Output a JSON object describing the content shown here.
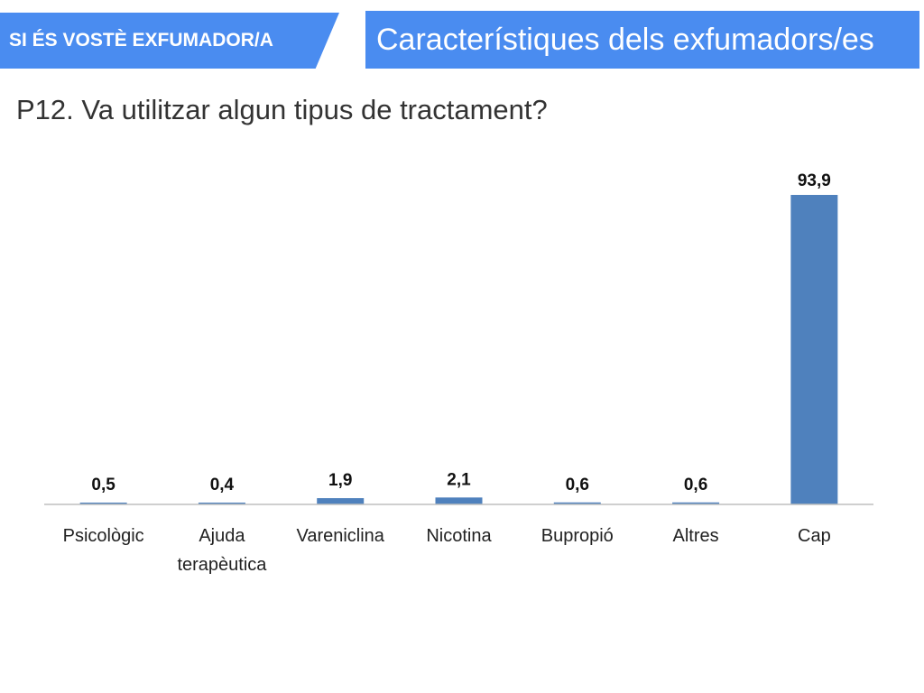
{
  "header": {
    "left_title": "SI ÉS VOSTÈ EXFUMADOR/A",
    "right_title": "Característiques dels exfumadors/es"
  },
  "question": "P12. Va utilitzar algun tipus de tractament?",
  "colors": {
    "banner": "#4a8cf0",
    "bar": "#4f81bd"
  },
  "chart_data": {
    "type": "bar",
    "categories": [
      [
        "Psicològic"
      ],
      [
        "Ajuda",
        "terapèutica"
      ],
      [
        "Vareniclina"
      ],
      [
        "Nicotina"
      ],
      [
        "Bupropió"
      ],
      [
        "Altres"
      ],
      [
        "Cap"
      ]
    ],
    "values": [
      0.5,
      0.4,
      1.9,
      2.1,
      0.6,
      0.6,
      93.9
    ],
    "value_labels": [
      "0,5",
      "0,4",
      "1,9",
      "2,1",
      "0,6",
      "0,6",
      "93,9"
    ],
    "ylim": [
      0,
      100
    ],
    "grid": false,
    "legend": "none"
  }
}
